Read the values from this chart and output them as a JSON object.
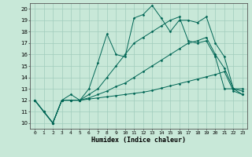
{
  "title": "",
  "xlabel": "Humidex (Indice chaleur)",
  "xlim": [
    -0.5,
    23.5
  ],
  "ylim": [
    9.5,
    20.5
  ],
  "yticks": [
    10,
    11,
    12,
    13,
    14,
    15,
    16,
    17,
    18,
    19,
    20
  ],
  "xticks": [
    0,
    1,
    2,
    3,
    4,
    5,
    6,
    7,
    8,
    9,
    10,
    11,
    12,
    13,
    14,
    15,
    16,
    17,
    18,
    19,
    20,
    21,
    22,
    23
  ],
  "bg_color": "#c8e8d8",
  "grid_color": "#a0ccbc",
  "line_color": "#006655",
  "line1": [
    12,
    11,
    10,
    12,
    12.5,
    12,
    13,
    15.3,
    17.8,
    16,
    15.8,
    19.2,
    19.5,
    20.3,
    19.2,
    18,
    19,
    19,
    18.8,
    19.3,
    17,
    15.8,
    13,
    12.5
  ],
  "line2": [
    12,
    11,
    10,
    12,
    12,
    12,
    12.1,
    12.2,
    12.3,
    12.4,
    12.5,
    12.6,
    12.7,
    12.85,
    13.05,
    13.25,
    13.45,
    13.65,
    13.85,
    14.05,
    14.25,
    14.5,
    12.8,
    12.5
  ],
  "line3": [
    12,
    11,
    10,
    12,
    12,
    12,
    12.5,
    13,
    14,
    15,
    16,
    17,
    17.5,
    18,
    18.5,
    19,
    19.3,
    17.2,
    17,
    17.2,
    15.8,
    13,
    13,
    13
  ],
  "line4": [
    12,
    11,
    10,
    12,
    12,
    12,
    12.2,
    12.5,
    12.8,
    13.2,
    13.5,
    14,
    14.5,
    15,
    15.5,
    16,
    16.5,
    17,
    17.2,
    17.5,
    16,
    14.8,
    13,
    12.8
  ]
}
